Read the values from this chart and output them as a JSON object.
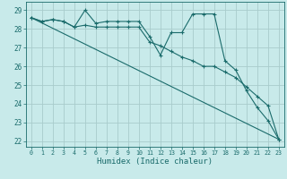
{
  "xlabel": "Humidex (Indice chaleur)",
  "xlim": [
    -0.5,
    23.5
  ],
  "ylim": [
    21.7,
    29.45
  ],
  "yticks": [
    22,
    23,
    24,
    25,
    26,
    27,
    28,
    29
  ],
  "xticks": [
    0,
    1,
    2,
    3,
    4,
    5,
    6,
    7,
    8,
    9,
    10,
    11,
    12,
    13,
    14,
    15,
    16,
    17,
    18,
    19,
    20,
    21,
    22,
    23
  ],
  "bg_color": "#c8eaea",
  "grid_color": "#a8cccc",
  "line_color": "#1a6b6b",
  "line1_x": [
    0,
    1,
    2,
    3,
    4,
    5,
    6,
    7,
    8,
    9,
    10,
    11,
    12,
    13,
    14,
    15,
    16,
    17,
    18,
    19,
    20,
    21,
    22,
    23
  ],
  "line1_y": [
    28.6,
    28.4,
    28.5,
    28.4,
    28.1,
    29.0,
    28.3,
    28.4,
    28.4,
    28.4,
    28.4,
    27.6,
    26.6,
    27.8,
    27.8,
    28.8,
    28.8,
    28.8,
    26.3,
    25.8,
    24.7,
    23.8,
    23.1,
    22.1
  ],
  "line2_x": [
    0,
    1,
    2,
    3,
    4,
    5,
    6,
    7,
    8,
    9,
    10,
    11,
    12,
    13,
    14,
    15,
    16,
    17,
    18,
    19,
    20,
    21,
    22,
    23
  ],
  "line2_y": [
    28.6,
    28.4,
    28.5,
    28.4,
    28.1,
    28.2,
    28.1,
    28.1,
    28.1,
    28.1,
    28.1,
    27.3,
    27.1,
    26.8,
    26.5,
    26.3,
    26.0,
    26.0,
    25.7,
    25.4,
    24.9,
    24.4,
    23.9,
    22.1
  ],
  "line3_x": [
    0,
    23
  ],
  "line3_y": [
    28.6,
    22.1
  ],
  "tick_fontsize": 5.5,
  "label_fontsize": 6.5
}
